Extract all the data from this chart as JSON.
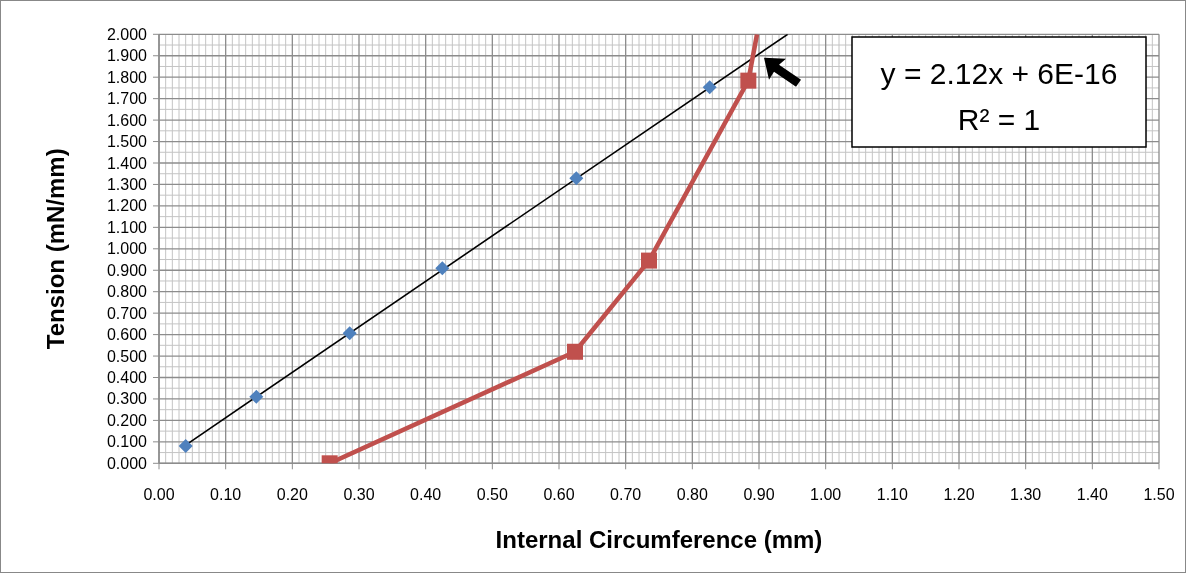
{
  "chart_data": {
    "type": "scatter",
    "xlabel": "Internal Circumference (mm)",
    "ylabel": "Tension (mN/mm)",
    "xlim": [
      0,
      1.5
    ],
    "ylim": [
      0,
      2
    ],
    "xticks": [
      {
        "value": 0,
        "label": "0.00"
      },
      {
        "value": 0.1,
        "label": "0.10"
      },
      {
        "value": 0.2,
        "label": "0.20"
      },
      {
        "value": 0.3,
        "label": "0.30"
      },
      {
        "value": 0.4,
        "label": "0.40"
      },
      {
        "value": 0.5,
        "label": "0.50"
      },
      {
        "value": 0.6,
        "label": "0.60"
      },
      {
        "value": 0.7,
        "label": "0.70"
      },
      {
        "value": 0.8,
        "label": "0.80"
      },
      {
        "value": 0.9,
        "label": "0.90"
      },
      {
        "value": 1,
        "label": "1.00"
      },
      {
        "value": 1.1,
        "label": "1.10"
      },
      {
        "value": 1.2,
        "label": "1.20"
      },
      {
        "value": 1.3,
        "label": "1.30"
      },
      {
        "value": 1.4,
        "label": "1.40"
      },
      {
        "value": 1.5,
        "label": "1.50"
      }
    ],
    "yticks": [
      {
        "value": 0,
        "label": "0.000"
      },
      {
        "value": 0.1,
        "label": "0.100"
      },
      {
        "value": 0.2,
        "label": "0.200"
      },
      {
        "value": 0.3,
        "label": "0.300"
      },
      {
        "value": 0.4,
        "label": "0.400"
      },
      {
        "value": 0.5,
        "label": "0.500"
      },
      {
        "value": 0.6,
        "label": "0.600"
      },
      {
        "value": 0.7,
        "label": "0.700"
      },
      {
        "value": 0.8,
        "label": "0.800"
      },
      {
        "value": 0.9,
        "label": "0.900"
      },
      {
        "value": 1,
        "label": "1.000"
      },
      {
        "value": 1.1,
        "label": "1.100"
      },
      {
        "value": 1.2,
        "label": "1.200"
      },
      {
        "value": 1.3,
        "label": "1.300"
      },
      {
        "value": 1.4,
        "label": "1.400"
      },
      {
        "value": 1.5,
        "label": "1.500"
      },
      {
        "value": 1.6,
        "label": "1.600"
      },
      {
        "value": 1.7,
        "label": "1.700"
      },
      {
        "value": 1.8,
        "label": "1.800"
      },
      {
        "value": 1.9,
        "label": "1.900"
      },
      {
        "value": 2,
        "label": "2.000"
      }
    ],
    "grid": true,
    "series": [
      {
        "type": "line",
        "color": "#000000",
        "marker": "none",
        "x": [
          0.04,
          0.943
        ],
        "values": [
          0.085,
          2.0
        ]
      },
      {
        "color": "#4f81bd",
        "marker": "diamond",
        "x": [
          0.04,
          0.146,
          0.286,
          0.425,
          0.626,
          0.826
        ],
        "values": [
          0.081,
          0.31,
          0.606,
          0.909,
          1.329,
          1.753
        ]
      },
      {
        "type": "line",
        "color": "#c0504d",
        "marker": "square",
        "x": [
          0.256,
          0.624,
          0.735,
          0.884
        ],
        "values": [
          0,
          0.52,
          0.945,
          1.784
        ]
      },
      {
        "type": "line",
        "color": "#c0504d",
        "marker": "none",
        "x": [
          0.884,
          0.897
        ],
        "values": [
          1.784,
          2.0
        ]
      }
    ],
    "annotations": [
      "y = 2.12x + 6E-16",
      "R² = 1"
    ]
  }
}
